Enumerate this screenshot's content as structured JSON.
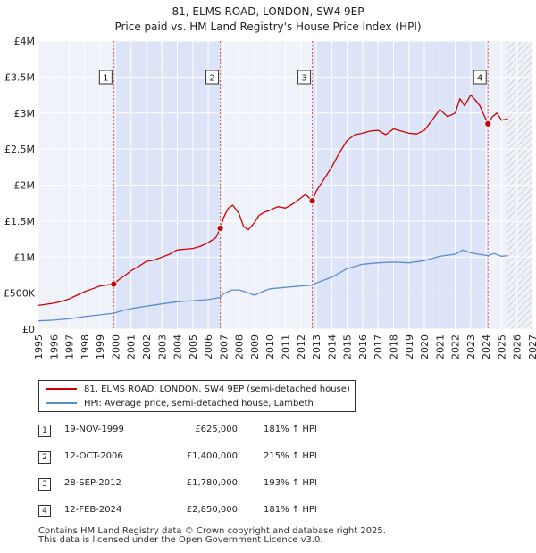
{
  "chart_data": {
    "type": "line",
    "title": "81, ELMS ROAD, LONDON, SW4 9EP",
    "subtitle": "Price paid vs. HM Land Registry's House Price Index (HPI)",
    "xlabel": "",
    "ylabel": "",
    "xlim": [
      1995,
      2027
    ],
    "ylim": [
      0,
      4000000
    ],
    "x_ticks": [
      "1995",
      "1996",
      "1997",
      "1998",
      "1999",
      "2000",
      "2001",
      "2002",
      "2003",
      "2004",
      "2005",
      "2006",
      "2007",
      "2008",
      "2009",
      "2010",
      "2011",
      "2012",
      "2013",
      "2014",
      "2015",
      "2016",
      "2017",
      "2018",
      "2019",
      "2020",
      "2021",
      "2022",
      "2023",
      "2024",
      "2025",
      "2026",
      "2027"
    ],
    "y_ticks": [
      {
        "value": 0,
        "label": "£0"
      },
      {
        "value": 500000,
        "label": "£500K"
      },
      {
        "value": 1000000,
        "label": "£1M"
      },
      {
        "value": 1500000,
        "label": "£1.5M"
      },
      {
        "value": 2000000,
        "label": "£2M"
      },
      {
        "value": 2500000,
        "label": "£2.5M"
      },
      {
        "value": 3000000,
        "label": "£3M"
      },
      {
        "value": 3500000,
        "label": "£3.5M"
      },
      {
        "value": 4000000,
        "label": "£4M"
      }
    ],
    "grid": true,
    "forecast_from": 2025.3,
    "series": [
      {
        "name": "81, ELMS ROAD, LONDON, SW4 9EP (semi-detached house)",
        "color": "#cc0000",
        "x": [
          1995.0,
          1995.5,
          1996.0,
          1996.5,
          1997.0,
          1997.5,
          1998.0,
          1998.5,
          1999.0,
          1999.5,
          1999.88,
          2000.3,
          2000.7,
          2001.0,
          2001.5,
          2002.0,
          2002.5,
          2003.0,
          2003.5,
          2004.0,
          2004.5,
          2005.0,
          2005.5,
          2006.0,
          2006.5,
          2006.78,
          2007.0,
          2007.3,
          2007.6,
          2008.0,
          2008.3,
          2008.6,
          2009.0,
          2009.3,
          2009.6,
          2010.0,
          2010.5,
          2011.0,
          2011.5,
          2012.0,
          2012.3,
          2012.74,
          2013.0,
          2013.5,
          2014.0,
          2014.5,
          2015.0,
          2015.5,
          2016.0,
          2016.5,
          2017.0,
          2017.5,
          2018.0,
          2018.5,
          2019.0,
          2019.5,
          2020.0,
          2020.5,
          2021.0,
          2021.5,
          2022.0,
          2022.3,
          2022.6,
          2023.0,
          2023.3,
          2023.6,
          2024.12,
          2024.4,
          2024.7,
          2025.0,
          2025.4
        ],
        "values": [
          330000,
          345000,
          360000,
          385000,
          420000,
          470000,
          520000,
          560000,
          600000,
          615000,
          625000,
          700000,
          760000,
          810000,
          870000,
          940000,
          960000,
          1000000,
          1040000,
          1100000,
          1110000,
          1120000,
          1150000,
          1200000,
          1270000,
          1400000,
          1550000,
          1680000,
          1720000,
          1600000,
          1420000,
          1380000,
          1480000,
          1580000,
          1620000,
          1650000,
          1700000,
          1680000,
          1740000,
          1820000,
          1870000,
          1780000,
          1920000,
          2080000,
          2250000,
          2450000,
          2620000,
          2700000,
          2720000,
          2750000,
          2760000,
          2700000,
          2780000,
          2750000,
          2720000,
          2710000,
          2760000,
          2900000,
          3050000,
          2950000,
          3000000,
          3200000,
          3100000,
          3250000,
          3180000,
          3100000,
          2850000,
          2950000,
          3000000,
          2900000,
          2920000
        ]
      },
      {
        "name": "HPI: Average price, semi-detached house, Lambeth",
        "color": "#5b8ccf",
        "x": [
          1995.0,
          1996.0,
          1997.0,
          1998.0,
          1999.0,
          1999.88,
          2000.5,
          2001.0,
          2002.0,
          2003.0,
          2004.0,
          2005.0,
          2006.0,
          2006.78,
          2007.0,
          2007.5,
          2008.0,
          2008.5,
          2009.0,
          2009.5,
          2010.0,
          2011.0,
          2012.0,
          2012.74,
          2013.0,
          2014.0,
          2015.0,
          2016.0,
          2017.0,
          2018.0,
          2019.0,
          2020.0,
          2021.0,
          2022.0,
          2022.5,
          2023.0,
          2023.5,
          2024.12,
          2024.5,
          2025.0,
          2025.4
        ],
        "values": [
          115000,
          125000,
          145000,
          175000,
          200000,
          222000,
          260000,
          285000,
          320000,
          350000,
          380000,
          395000,
          410000,
          440000,
          490000,
          540000,
          545000,
          510000,
          470000,
          520000,
          560000,
          580000,
          600000,
          610000,
          640000,
          720000,
          840000,
          900000,
          920000,
          930000,
          920000,
          950000,
          1010000,
          1040000,
          1100000,
          1060000,
          1040000,
          1020000,
          1050000,
          1010000,
          1020000
        ]
      }
    ],
    "sales": [
      {
        "num": "1",
        "date": "19-NOV-1999",
        "x": 1999.88,
        "price_value": 625000,
        "price": "£625,000",
        "hpi": "181% ↑ HPI"
      },
      {
        "num": "2",
        "date": "12-OCT-2006",
        "x": 2006.78,
        "price_value": 1400000,
        "price": "£1,400,000",
        "hpi": "215% ↑ HPI"
      },
      {
        "num": "3",
        "date": "28-SEP-2012",
        "x": 2012.74,
        "price_value": 1780000,
        "price": "£1,780,000",
        "hpi": "193% ↑ HPI"
      },
      {
        "num": "4",
        "date": "12-FEB-2024",
        "x": 2024.12,
        "price_value": 2850000,
        "price": "£2,850,000",
        "hpi": "181% ↑ HPI"
      }
    ],
    "highlight_ranges": [
      [
        1999.88,
        2006.78
      ],
      [
        2012.74,
        2024.12
      ]
    ]
  },
  "legend": {
    "property_label": "81, ELMS ROAD, LONDON, SW4 9EP (semi-detached house)",
    "hpi_label": "HPI: Average price, semi-detached house, Lambeth",
    "property_color": "#cc0000",
    "hpi_color": "#5b8ccf"
  },
  "footer": {
    "line1": "Contains HM Land Registry data © Crown copyright and database right 2025.",
    "line2": "This data is licensed under the Open Government Licence v3.0."
  },
  "colors": {
    "plot_bg": "#f0f2fa",
    "highlight": "#dde4f7",
    "grid": "#ffffff",
    "vline": "#e05050"
  }
}
